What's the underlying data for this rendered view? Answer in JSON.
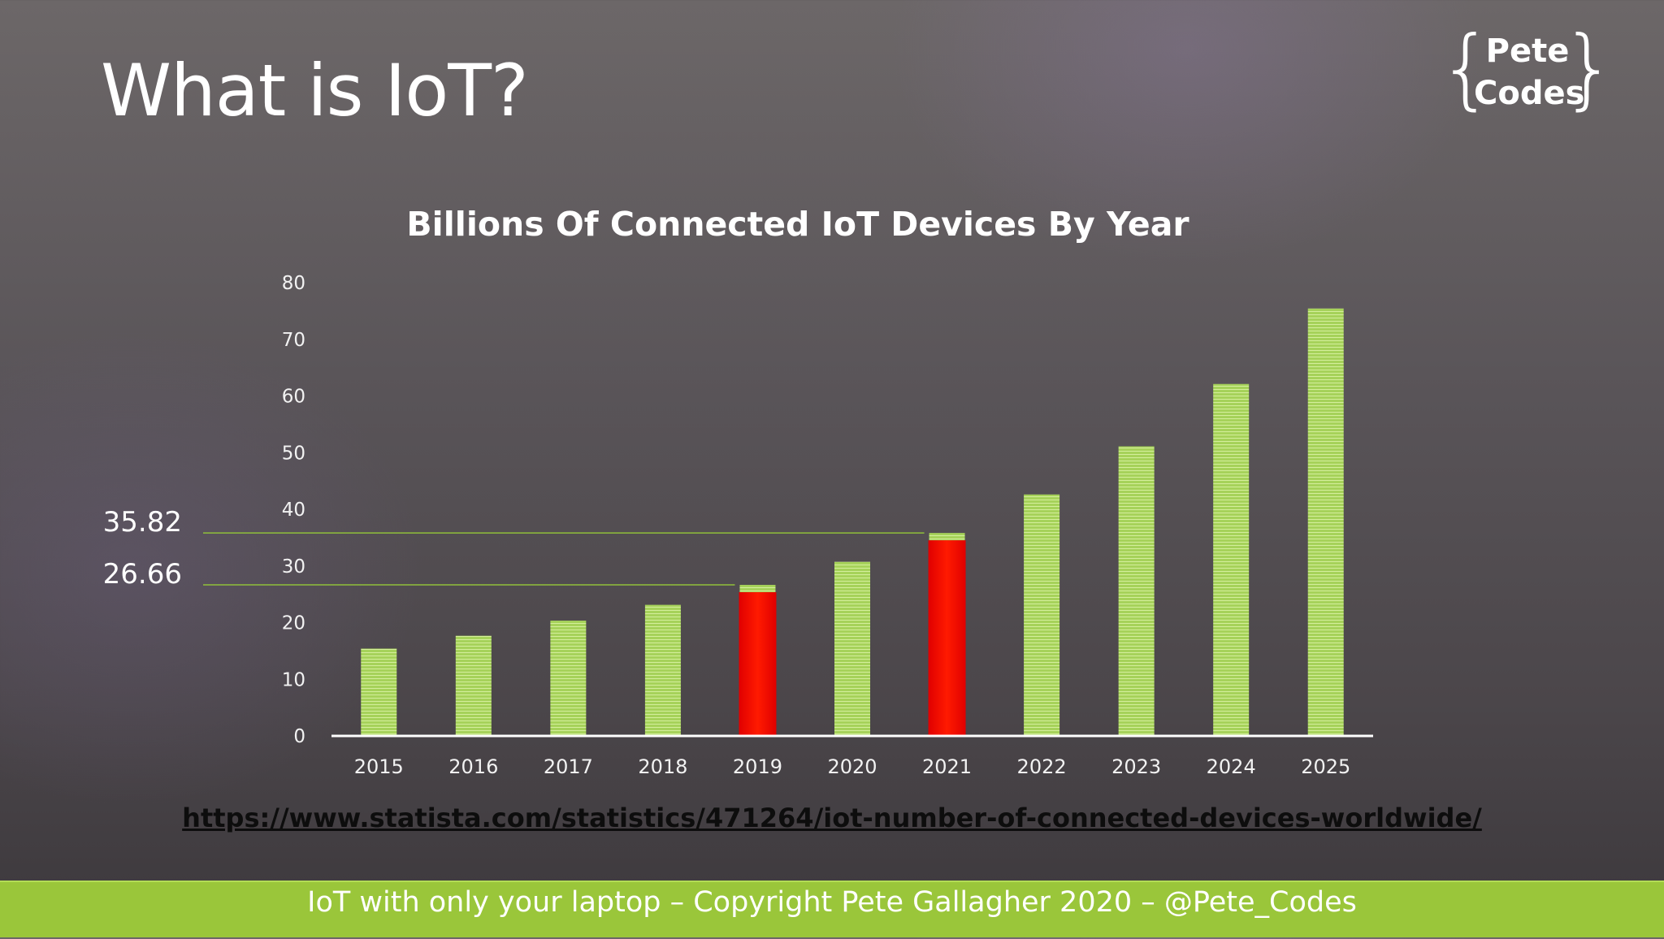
{
  "slide": {
    "title": "What is IoT?",
    "logo_line1": "Pete",
    "logo_line2": "Codes",
    "logo_brace_open": "{",
    "logo_brace_close": "}",
    "source_url": "https://www.statista.com/statistics/471264/iot-number-of-connected-devices-worldwide/",
    "footer": "IoT with only your laptop – Copyright Pete Gallagher 2020 – @Pete_Codes"
  },
  "colors": {
    "bar_green": "#a6d25a",
    "bar_red": "#ff0000",
    "reference_line": "#8fbf3a",
    "footer_bar": "#9ac63a"
  },
  "chart_data": {
    "type": "bar",
    "title": "Billions Of Connected IoT Devices By Year",
    "categories": [
      "2015",
      "2016",
      "2017",
      "2018",
      "2019",
      "2020",
      "2021",
      "2022",
      "2023",
      "2024",
      "2025"
    ],
    "series": [
      {
        "values": [
          15.41,
          17.68,
          20.35,
          23.14,
          26.66,
          30.73,
          35.82,
          42.62,
          51.11,
          62.12,
          75.44
        ]
      }
    ],
    "highlighted": [
      "2019",
      "2021"
    ],
    "reference_lines": [
      {
        "value": 35.82,
        "label": "35.82"
      },
      {
        "value": 26.66,
        "label": "26.66"
      }
    ],
    "yticks": [
      0,
      10,
      20,
      30,
      40,
      50,
      60,
      70,
      80
    ],
    "ylim": [
      0,
      80
    ],
    "xlabel": "",
    "ylabel": "",
    "grid": false,
    "legend": "none"
  }
}
